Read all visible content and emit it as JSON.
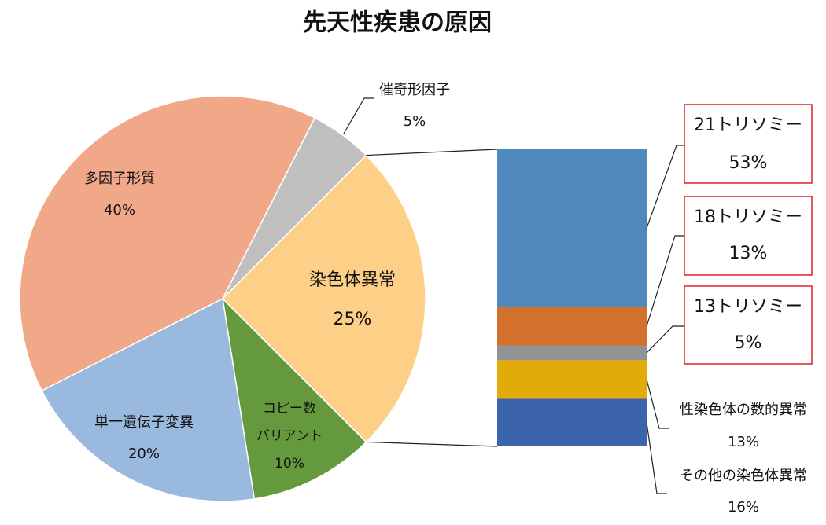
{
  "chart_data": {
    "type": "pie-of-bar",
    "title": "先天性疾患の原因",
    "categories": [
      "染色体異常",
      "コピー数\nバリアント",
      "単一遺伝子変異",
      "多因子形質",
      "催奇形因子"
    ],
    "values": [
      25,
      10,
      20,
      40,
      5
    ],
    "value_labels": [
      "25%",
      "10%",
      "20%",
      "40%",
      "5%"
    ],
    "colors": [
      "#fed087",
      "#64993e",
      "#9ab9df",
      "#f0a888",
      "#bfbfbf"
    ],
    "bar": {
      "categories": [
        "21トリソミー",
        "18トリソミー",
        "13トリソミー",
        "性染色体の数的異常",
        "その他の染色体異常"
      ],
      "values": [
        53,
        13,
        5,
        13,
        16
      ],
      "value_labels": [
        "53%",
        "13%",
        "5%",
        "13%",
        "16%"
      ],
      "colors": [
        "#4f88bc",
        "#d4702e",
        "#939393",
        "#e2ab07",
        "#3b64ad"
      ]
    }
  }
}
